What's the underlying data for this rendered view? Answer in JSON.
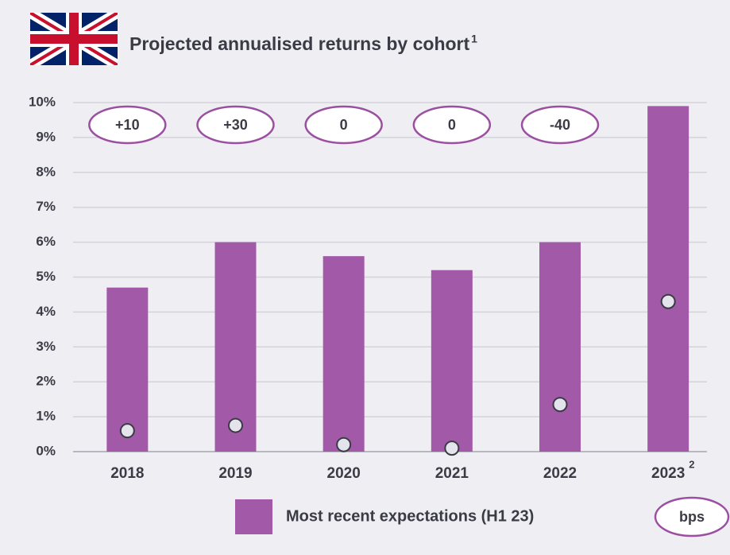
{
  "chart_data": {
    "type": "bar",
    "title": "Projected annualised returns by cohort",
    "title_note": "1",
    "categories": [
      "2018",
      "2019",
      "2020",
      "2021",
      "2022",
      "2023"
    ],
    "category_notes": [
      null,
      null,
      null,
      null,
      null,
      "2"
    ],
    "series": [
      {
        "name": "Most recent expectations (H1 23)",
        "color": "#a259a8",
        "values": [
          4.7,
          6.0,
          5.6,
          5.2,
          6.0,
          9.9
        ]
      },
      {
        "color": "#e4e4ec",
        "marker": "circle",
        "values": [
          0.6,
          0.75,
          0.2,
          0.1,
          1.35,
          4.3
        ]
      }
    ],
    "annotations": [
      "+10",
      "+30",
      "0",
      "0",
      "-40",
      null
    ],
    "annotation_key": "bps",
    "ylim": [
      0,
      10
    ],
    "yticks": [
      {
        "value": 0,
        "label": "0%"
      },
      {
        "value": 1,
        "label": "1%"
      },
      {
        "value": 2,
        "label": "2%"
      },
      {
        "value": 3,
        "label": "3%"
      },
      {
        "value": 4,
        "label": "4%"
      },
      {
        "value": 5,
        "label": "5%"
      },
      {
        "value": 6,
        "label": "6%"
      },
      {
        "value": 7,
        "label": "7%"
      },
      {
        "value": 8,
        "label": "8%"
      },
      {
        "value": 9,
        "label": "9%"
      },
      {
        "value": 10,
        "label": "10%"
      }
    ],
    "grid": true
  }
}
